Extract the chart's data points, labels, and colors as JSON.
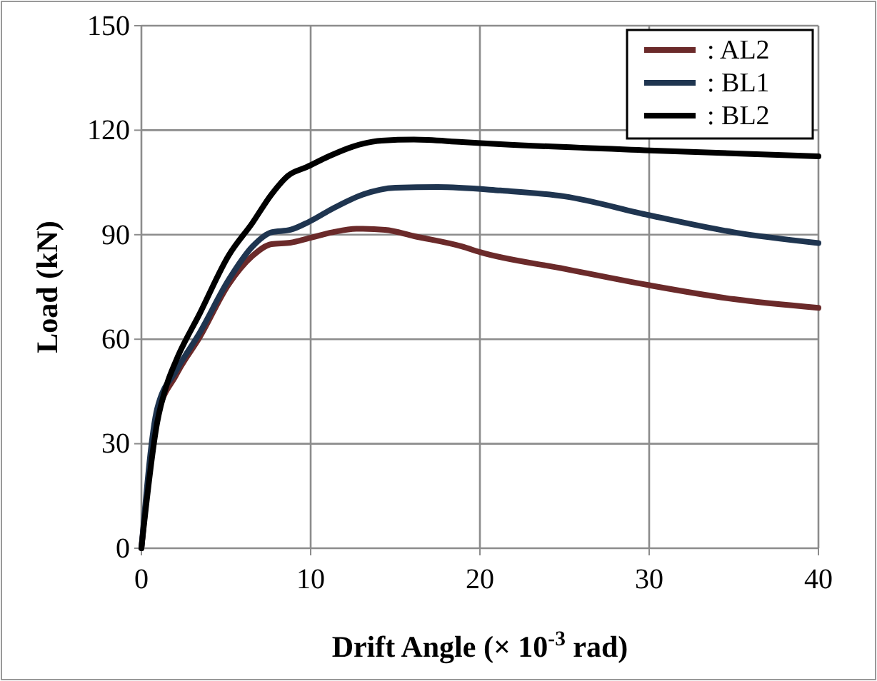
{
  "chart_data": {
    "type": "line",
    "xlabel": "Drift Angle (× 10$^{-3}$ rad)",
    "ylabel": "Load (kN)",
    "xlim": [
      0,
      40
    ],
    "ylim": [
      0,
      150
    ],
    "xticks": [
      0,
      10,
      20,
      30,
      40
    ],
    "yticks": [
      0,
      30,
      60,
      90,
      120,
      150
    ],
    "grid": true,
    "legend": "top right",
    "line_style": "solid",
    "marker": "none",
    "series": [
      {
        "name": ": AL2",
        "color": "#6b2a2a",
        "x": [
          0,
          0.93,
          2.06,
          3.46,
          5.15,
          6.56,
          7.69,
          8.8,
          9.9,
          11.3,
          12.7,
          14.4,
          16.1,
          18.96,
          20,
          25,
          30,
          35,
          40
        ],
        "values": [
          0,
          37.5,
          49.8,
          60.7,
          75.7,
          83.9,
          87.3,
          87.7,
          89,
          90.7,
          91.7,
          91.4,
          89.6,
          86.6,
          85,
          80.2,
          75.5,
          71.5,
          69
        ]
      },
      {
        "name": ": BL1",
        "color": "#1f3550",
        "x": [
          0,
          0.93,
          2.06,
          3.46,
          5.15,
          6.56,
          7.69,
          8.8,
          9.9,
          11.3,
          13,
          15,
          17.5,
          21.2,
          25,
          30,
          35,
          40
        ],
        "values": [
          0,
          40,
          51,
          62,
          77,
          86.6,
          90.7,
          91.4,
          93.7,
          97.5,
          101.4,
          103.5,
          103.7,
          102.7,
          101,
          95.6,
          90.7,
          87.6
        ]
      },
      {
        "name": ": BL2",
        "color": "#000000",
        "x": [
          0,
          0.93,
          1.5,
          2.06,
          3.46,
          5.15,
          6.56,
          7.69,
          8.68,
          9.8,
          11.07,
          12.5,
          14.2,
          16.1,
          18.96,
          21.2,
          30,
          40
        ],
        "values": [
          0,
          36,
          47,
          54,
          67.5,
          84,
          93.4,
          101.6,
          107,
          109.5,
          112.5,
          115.3,
          117,
          117.3,
          116.6,
          116,
          114.2,
          112.5
        ]
      }
    ]
  }
}
